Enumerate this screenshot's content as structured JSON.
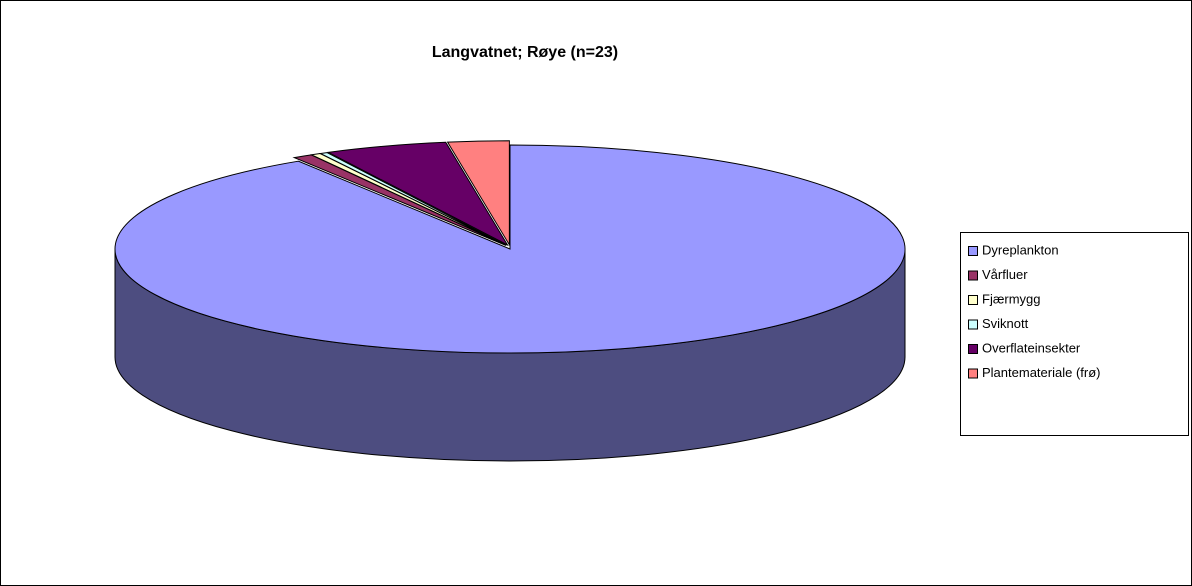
{
  "chart_data": {
    "type": "pie",
    "title": "Langvatnet; Røye (n=23)",
    "categories": [
      "Dyreplankton",
      "Vårfluer",
      "Fjærmygg",
      "Sviknott",
      "Overflateinsekter",
      "Plantemateriale (frø)"
    ],
    "values": [
      91,
      0.8,
      0.4,
      0.3,
      5,
      2.5
    ],
    "colors": [
      "#9999ff",
      "#993366",
      "#ffffcc",
      "#ccffff",
      "#660066",
      "#ff8080"
    ],
    "legend": "right"
  }
}
